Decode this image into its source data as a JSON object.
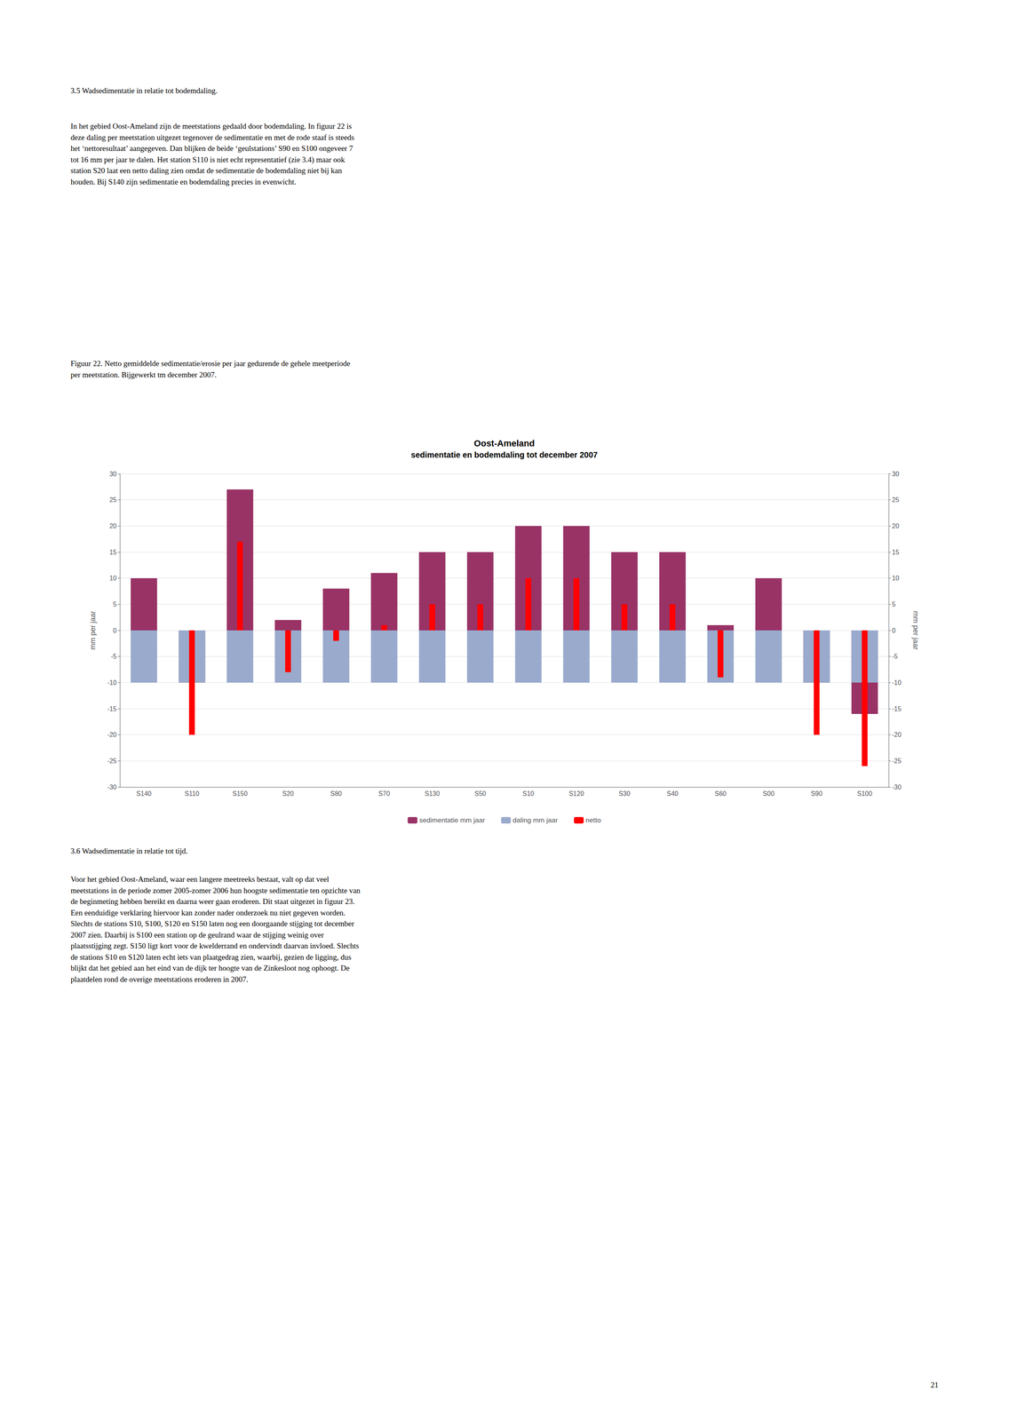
{
  "header": "3.5 Wadsedimentatie in relatie tot bodemdaling.",
  "body": "In het gebied Oost-Ameland zijn de meetstations gedaald door bodemdaling. In figuur 22 is\ndeze daling per meetstation uitgezet tegenover de sedimentatie en met de rode staaf is steeds\nhet ‘nettoresultaat’ aangegeven. Dan blijken de beide ‘geulstations’ S90 en S100 ongeveer 7\ntot 16 mm per jaar te dalen. Het station S110 is niet echt representatief (zie 3.4) maar ook\nstation S20 laat een netto daling zien omdat de sedimentatie de bodemdaling niet bij kan\nhouden. Bij S140 zijn sedimentatie en bodemdaling precies in evenwicht.",
  "caption": "Figuur 22. Netto gemiddelde sedimentatie/erosie per jaar gedurende de gehele meetperiode\nper meetstation. Bijgewerkt tm december 2007.",
  "footer_header": "3.6 Wadsedimentatie in relatie tot tijd.",
  "footer_body": "Voor het gebied Oost-Ameland, waar een langere meetreeks bestaat, valt op dat veel\nmeetstations in de periode zomer 2005-zomer 2006 hun hoogste sedimentatie ten opzichte van\nde beginmeting hebben bereikt en daarna weer gaan eroderen. Dit staat uitgezet in figuur 23.\nEen eenduidige verklaring hiervoor kan zonder nader onderzoek nu niet gegeven worden.\nSlechts de stations S10, S100, S120 en S150 laten nog een doorgaande stijging tot december\n2007 zien. Daarbij is S100 een station op de geulrand waar de stijging weinig over\nplaatsstijging zegt. S150 ligt kort voor de kwelderrand en ondervindt daarvan invloed. Slechts\nde stations S10 en S120 laten echt iets van plaatgedrag zien, waarbij, gezien de ligging, dus\nblijkt dat het gebied aan het eind van de dijk ter hoogte van de Zinkesloot nog ophoogt. De\nplaatdelen rond de overige meetstations eroderen in 2007.",
  "page_number": "21",
  "chart_data": {
    "type": "bar",
    "title": "Oost-Ameland",
    "subtitle": "sedimentatie en bodemdaling tot december 2007",
    "categories": [
      "S140",
      "S110",
      "S150",
      "S20",
      "S80",
      "S70",
      "S130",
      "S50",
      "S10",
      "S120",
      "S30",
      "S40",
      "S60",
      "S00",
      "S90",
      "S100"
    ],
    "series": [
      {
        "name": "sedimentatie mm jaar",
        "color": "#993366",
        "values": [
          10,
          -10,
          27,
          2,
          8,
          11,
          15,
          15,
          20,
          20,
          15,
          15,
          1,
          10,
          -10,
          -16
        ]
      },
      {
        "name": "daling mm jaar",
        "color": "#99AACC",
        "values": [
          -10,
          -10,
          -10,
          -10,
          -10,
          -10,
          -10,
          -10,
          -10,
          -10,
          -10,
          -10,
          -10,
          -10,
          -10,
          -10
        ]
      },
      {
        "name": "netto",
        "color": "#FF0000",
        "values": [
          0,
          -20,
          17,
          -8,
          -2,
          1,
          5,
          5,
          10,
          10,
          5,
          5,
          -9,
          0,
          -20,
          -26
        ]
      }
    ],
    "ylabel": "mm per jaar",
    "ylim": [
      -30,
      30
    ],
    "yticks": [
      -30,
      -25,
      -20,
      -15,
      -10,
      -5,
      0,
      5,
      10,
      15,
      20,
      25,
      30
    ],
    "y2label": "mm per jaar",
    "y2lim": [
      -30,
      30
    ],
    "y2ticks": [
      -30,
      -25,
      -20,
      -15,
      -10,
      -5,
      0,
      5,
      10,
      15,
      20,
      25,
      30
    ],
    "grid": true,
    "legend": "bottom"
  }
}
